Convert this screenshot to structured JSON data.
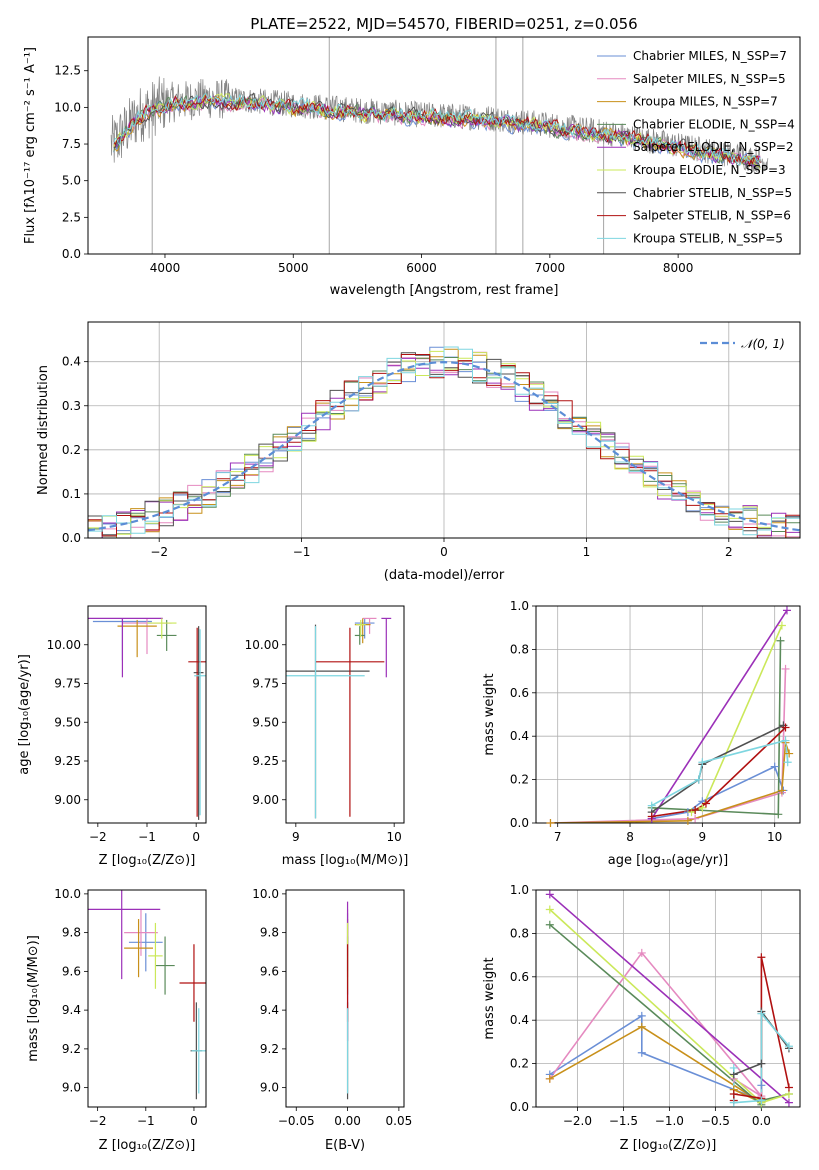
{
  "colors": [
    "#6a8fd6",
    "#e58ac0",
    "#c8901a",
    "#5a8a5a",
    "#9b30b8",
    "#cbe85a",
    "#505050",
    "#b01010",
    "#7ed6e0"
  ],
  "chart_data": [
    {
      "id": "spectrum",
      "type": "line",
      "title": "PLATE=2522, MJD=54570, FIBERID=0251, z=0.056",
      "xlabel": "wavelength [Angstrom, rest frame]",
      "ylabel": "Flux [fλ10⁻¹⁷ erg cm⁻² s⁻¹ A⁻¹]",
      "xlim": [
        3400,
        8950
      ],
      "ylim": [
        0,
        14.8
      ],
      "xticks": [
        4000,
        5000,
        6000,
        7000,
        8000
      ],
      "yticks": [
        0.0,
        2.5,
        5.0,
        7.5,
        10.0,
        12.5
      ],
      "data_color": "#808080",
      "continuum": {
        "x": [
          3600,
          3800,
          4000,
          4300,
          4600,
          5000,
          5500,
          6000,
          6500,
          7000,
          7500,
          8000,
          8400,
          8700
        ],
        "y": [
          7.5,
          9.5,
          10.3,
          10.6,
          10.5,
          10.2,
          9.8,
          9.5,
          9.3,
          8.8,
          8.2,
          7.4,
          6.8,
          6.3
        ]
      },
      "legend_position": "upper right",
      "series": [
        {
          "name": "Chabrier MILES, N_SSP=7"
        },
        {
          "name": "Salpeter MILES, N_SSP=5"
        },
        {
          "name": "Kroupa MILES, N_SSP=7"
        },
        {
          "name": "Chabrier ELODIE, N_SSP=4"
        },
        {
          "name": "Salpeter ELODIE, N_SSP=2"
        },
        {
          "name": "Kroupa ELODIE, N_SSP=3"
        },
        {
          "name": "Chabrier STELIB, N_SSP=5"
        },
        {
          "name": "Salpeter STELIB, N_SSP=6"
        },
        {
          "name": "Kroupa STELIB, N_SSP=5"
        }
      ]
    },
    {
      "id": "residuals",
      "type": "bar",
      "xlabel": "(data-model)/error",
      "ylabel": "Normed distribution",
      "xlim": [
        -2.5,
        2.5
      ],
      "ylim": [
        0,
        0.49
      ],
      "xticks": [
        -2,
        -1,
        0,
        1,
        2
      ],
      "yticks": [
        0.0,
        0.1,
        0.2,
        0.3,
        0.4
      ],
      "gaussian_label": "𝒩(0, 1)",
      "gaussian_color": "#5b8dd6",
      "bin_width": 0.1,
      "legend_position": "upper right"
    },
    {
      "id": "age-vs-Z",
      "type": "scatter",
      "xlabel": "Z [log₁₀(Z/Z⊙)]",
      "ylabel": "age  [log₁₀(age/yr)]",
      "xlim": [
        -2.2,
        0.2
      ],
      "ylim": [
        8.85,
        10.25
      ],
      "xticks": [
        -2,
        -1,
        0
      ],
      "yticks": [
        9.0,
        9.25,
        9.5,
        9.75,
        10.0
      ],
      "points": [
        {
          "x": -1.5,
          "y": 10.15,
          "xerr": 0.6,
          "yerr_lo": 0.25,
          "yerr_hi": 0.02
        },
        {
          "x": -1.0,
          "y": 10.14,
          "xerr": 0.5,
          "yerr_lo": 0.2,
          "yerr_hi": 0.03
        },
        {
          "x": -1.2,
          "y": 10.12,
          "xerr": 0.4,
          "yerr_lo": 0.2,
          "yerr_hi": 0.04
        },
        {
          "x": -0.6,
          "y": 10.06,
          "xerr": 0.2,
          "yerr_lo": 0.1,
          "yerr_hi": 0.1
        },
        {
          "x": -1.5,
          "y": 10.17,
          "xerr": 0.82,
          "yerr_lo": 0.38,
          "yerr_hi": 0.0
        },
        {
          "x": -0.7,
          "y": 10.14,
          "xerr": 0.3,
          "yerr_lo": 0.1,
          "yerr_hi": 0.03
        },
        {
          "x": 0.05,
          "y": 9.82,
          "xerr": 0.1,
          "yerr_lo": 0.95,
          "yerr_hi": 0.3
        },
        {
          "x": 0.02,
          "y": 9.89,
          "xerr": 0.18,
          "yerr_lo": 1.0,
          "yerr_hi": 0.22
        },
        {
          "x": 0.08,
          "y": 9.8,
          "xerr": 0.12,
          "yerr_lo": 0.9,
          "yerr_hi": 0.3
        }
      ]
    },
    {
      "id": "age-vs-mass",
      "type": "scatter",
      "xlabel": "mass [log₁₀(M/M⊙)]",
      "xlim": [
        8.9,
        10.1
      ],
      "ylim": [
        8.85,
        10.25
      ],
      "xticks": [
        9,
        10
      ],
      "yticks": [
        9.0,
        9.25,
        9.5,
        9.75,
        10.0
      ],
      "points": [
        {
          "x": 9.7,
          "y": 10.14,
          "xerr": 0.1,
          "yerr_lo": 0.1,
          "yerr_hi": 0.03
        },
        {
          "x": 9.75,
          "y": 10.17,
          "xerr": 0.07,
          "yerr_lo": 0.1,
          "yerr_hi": 0.0
        },
        {
          "x": 9.68,
          "y": 10.13,
          "xerr": 0.08,
          "yerr_lo": 0.12,
          "yerr_hi": 0.04
        },
        {
          "x": 9.65,
          "y": 10.06,
          "xerr": 0.05,
          "yerr_lo": 0.06,
          "yerr_hi": 0.06
        },
        {
          "x": 9.92,
          "y": 10.17,
          "xerr": 0.05,
          "yerr_lo": 0.38,
          "yerr_hi": 0.0
        },
        {
          "x": 9.66,
          "y": 10.13,
          "xerr": 0.05,
          "yerr_lo": 0.08,
          "yerr_hi": 0.03
        },
        {
          "x": 9.2,
          "y": 9.83,
          "xerr": 0.55,
          "yerr_lo": 0.95,
          "yerr_hi": 0.3
        },
        {
          "x": 9.55,
          "y": 9.89,
          "xerr": 0.35,
          "yerr_lo": 1.0,
          "yerr_hi": 0.22
        },
        {
          "x": 9.2,
          "y": 9.8,
          "xerr": 0.5,
          "yerr_lo": 0.92,
          "yerr_hi": 0.32
        }
      ]
    },
    {
      "id": "weight-vs-age",
      "type": "line",
      "xlabel": "age  [log₁₀(age/yr)]",
      "ylabel": "mass weight",
      "xlim": [
        6.7,
        10.35
      ],
      "ylim": [
        0,
        1.0
      ],
      "xticks": [
        7,
        8,
        9,
        10
      ],
      "yticks": [
        0.0,
        0.2,
        0.4,
        0.6,
        0.8,
        1.0
      ],
      "series": [
        {
          "x": [
            8.3,
            8.8,
            9.0,
            10.0,
            10.12
          ],
          "y": [
            0.02,
            0.05,
            0.1,
            0.26,
            0.15
          ]
        },
        {
          "x": [
            6.9,
            8.9,
            10.1,
            10.15
          ],
          "y": [
            0.0,
            0.02,
            0.14,
            0.71
          ]
        },
        {
          "x": [
            6.9,
            8.8,
            10.1,
            10.15,
            10.2
          ],
          "y": [
            0.0,
            0.01,
            0.15,
            0.37,
            0.32
          ]
        },
        {
          "x": [
            8.3,
            8.9,
            10.05,
            10.08
          ],
          "y": [
            0.07,
            0.06,
            0.04,
            0.84
          ]
        },
        {
          "x": [
            8.3,
            10.17
          ],
          "y": [
            0.02,
            0.98
          ]
        },
        {
          "x": [
            8.85,
            9.0,
            10.1
          ],
          "y": [
            0.05,
            0.07,
            0.91
          ]
        },
        {
          "x": [
            8.3,
            8.95,
            9.0,
            10.12
          ],
          "y": [
            0.05,
            0.2,
            0.27,
            0.45
          ]
        },
        {
          "x": [
            8.3,
            8.9,
            9.05,
            10.15
          ],
          "y": [
            0.03,
            0.06,
            0.09,
            0.44
          ]
        },
        {
          "x": [
            8.3,
            8.95,
            9.0,
            10.15,
            10.18
          ],
          "y": [
            0.08,
            0.2,
            0.28,
            0.38,
            0.28
          ]
        }
      ]
    },
    {
      "id": "mass-vs-Z",
      "type": "scatter",
      "xlabel": "Z [log₁₀(Z/Z⊙)]",
      "ylabel": "mass [log₁₀(M/M⊙)]",
      "xlim": [
        -2.2,
        0.25
      ],
      "ylim": [
        8.9,
        10.02
      ],
      "xticks": [
        -2,
        -1,
        0
      ],
      "yticks": [
        9.0,
        9.2,
        9.4,
        9.6,
        9.8,
        10.0
      ],
      "points": [
        {
          "x": -1.0,
          "y": 9.75,
          "xerr": 0.35,
          "yerr": 0.15
        },
        {
          "x": -1.1,
          "y": 9.8,
          "xerr": 0.35,
          "yerr": 0.12
        },
        {
          "x": -1.15,
          "y": 9.72,
          "xerr": 0.3,
          "yerr": 0.15
        },
        {
          "x": -0.6,
          "y": 9.63,
          "xerr": 0.2,
          "yerr": 0.15
        },
        {
          "x": -1.5,
          "y": 9.92,
          "xerr": 0.8,
          "yerr": 0.36
        },
        {
          "x": -0.8,
          "y": 9.68,
          "xerr": 0.15,
          "yerr": 0.17
        },
        {
          "x": 0.05,
          "y": 9.19,
          "xerr": 0.12,
          "yerr": 0.25
        },
        {
          "x": 0.0,
          "y": 9.54,
          "xerr": 0.3,
          "yerr": 0.2
        },
        {
          "x": 0.1,
          "y": 9.19,
          "xerr": 0.15,
          "yerr": 0.22
        }
      ]
    },
    {
      "id": "mass-vs-EBV",
      "type": "scatter",
      "xlabel": "E(B-V)",
      "xlim": [
        -0.06,
        0.055
      ],
      "ylim": [
        8.9,
        10.02
      ],
      "xticks": [
        -0.05,
        0.0,
        0.05
      ],
      "yticks": [
        9.0,
        9.2,
        9.4,
        9.6,
        9.8,
        10.0
      ],
      "points": [
        {
          "x": 0.0,
          "y": 9.75,
          "yerr": 0.15
        },
        {
          "x": 0.0,
          "y": 9.8,
          "yerr": 0.12
        },
        {
          "x": 0.0,
          "y": 9.72,
          "yerr": 0.15
        },
        {
          "x": 0.0,
          "y": 9.63,
          "yerr": 0.15
        },
        {
          "x": 0.0,
          "y": 9.6,
          "yerr": 0.36
        },
        {
          "x": 0.0,
          "y": 9.68,
          "yerr": 0.17
        },
        {
          "x": 0.0,
          "y": 9.19,
          "yerr": 0.25
        },
        {
          "x": 0.0,
          "y": 9.54,
          "yerr": 0.2
        },
        {
          "x": 0.0,
          "y": 9.19,
          "yerr": 0.22
        }
      ]
    },
    {
      "id": "weight-vs-Z",
      "type": "line",
      "xlabel": "Z [log₁₀(Z/Z⊙)]",
      "ylabel": "mass weight",
      "xlim": [
        -2.45,
        0.42
      ],
      "ylim": [
        0,
        1.0
      ],
      "xticks": [
        -2.0,
        -1.5,
        -1.0,
        -0.5,
        0.0
      ],
      "yticks": [
        0.0,
        0.2,
        0.4,
        0.6,
        0.8,
        1.0
      ],
      "series": [
        {
          "x": [
            -2.3,
            -1.3,
            -1.3,
            0.0,
            0.0
          ],
          "y": [
            0.15,
            0.42,
            0.25,
            0.03,
            0.1
          ]
        },
        {
          "x": [
            -2.3,
            -1.3,
            0.0,
            -0.3
          ],
          "y": [
            0.13,
            0.71,
            0.05,
            0.13
          ]
        },
        {
          "x": [
            -2.3,
            -1.3,
            0.0,
            -0.3
          ],
          "y": [
            0.13,
            0.37,
            0.02,
            0.08
          ]
        },
        {
          "x": [
            -2.3,
            0.0,
            0.0,
            0.3
          ],
          "y": [
            0.84,
            0.01,
            0.03,
            0.06
          ]
        },
        {
          "x": [
            -2.3,
            0.3
          ],
          "y": [
            0.98,
            0.02
          ]
        },
        {
          "x": [
            -2.3,
            0.0,
            0.3
          ],
          "y": [
            0.91,
            0.02,
            0.06
          ]
        },
        {
          "x": [
            -0.3,
            0.0,
            0.0,
            0.3
          ],
          "y": [
            0.15,
            0.2,
            0.44,
            0.27
          ]
        },
        {
          "x": [
            -0.3,
            -0.3,
            0.0,
            0.0,
            0.3
          ],
          "y": [
            0.03,
            0.06,
            0.04,
            0.69,
            0.09
          ]
        },
        {
          "x": [
            -0.3,
            -0.3,
            0.0,
            0.0,
            0.3
          ],
          "y": [
            0.18,
            0.02,
            0.03,
            0.43,
            0.28
          ]
        }
      ]
    }
  ]
}
